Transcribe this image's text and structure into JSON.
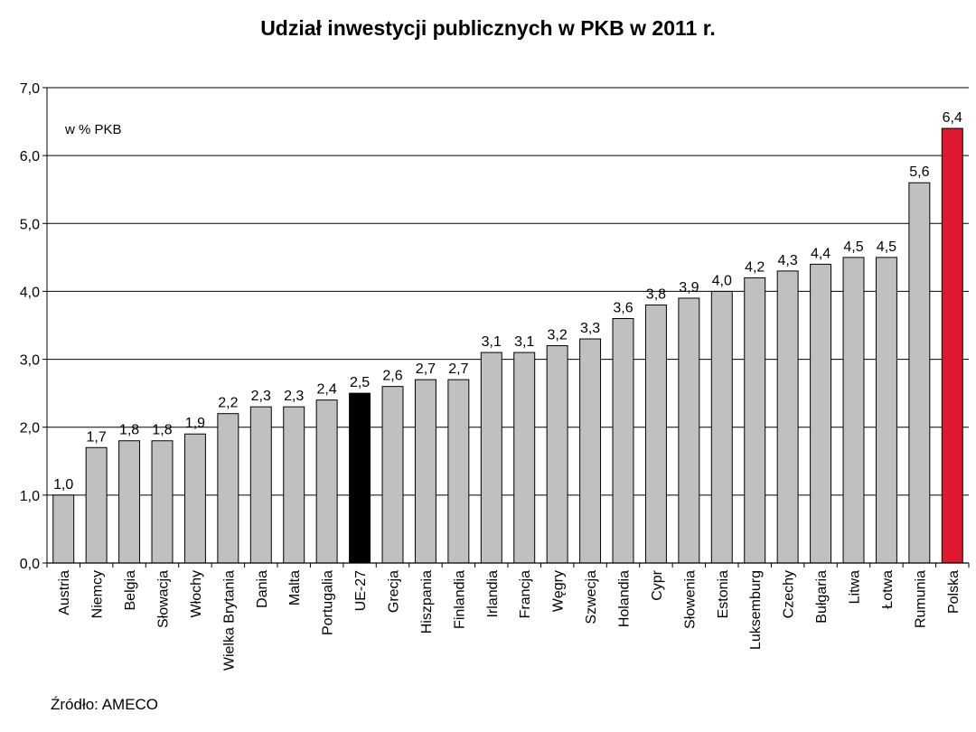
{
  "chart_data": {
    "type": "bar",
    "title": "Udział inwestycji publicznych w PKB w 2011 r.",
    "unit_label": "w % PKB",
    "source": "Źródło: AMECO",
    "ylim": [
      0,
      7
    ],
    "yticks": [
      "0,0",
      "1,0",
      "2,0",
      "3,0",
      "4,0",
      "5,0",
      "6,0",
      "7,0"
    ],
    "grid": true,
    "categories": [
      "Austria",
      "Niemcy",
      "Belgia",
      "Słowacja",
      "Włochy",
      "Wielka Brytania",
      "Dania",
      "Malta",
      "Portugalia",
      "UE-27",
      "Grecja",
      "Hiszpania",
      "Finlandia",
      "Irlandia",
      "Francja",
      "Węgry",
      "Szwecja",
      "Holandia",
      "Cypr",
      "Słowenia",
      "Estonia",
      "Luksemburg",
      "Czechy",
      "Bułgaria",
      "Litwa",
      "Łotwa",
      "Rumunia",
      "Polska"
    ],
    "values": [
      1.0,
      1.7,
      1.8,
      1.8,
      1.9,
      2.2,
      2.3,
      2.3,
      2.4,
      2.5,
      2.6,
      2.7,
      2.7,
      3.1,
      3.1,
      3.2,
      3.3,
      3.6,
      3.8,
      3.9,
      4.0,
      4.2,
      4.3,
      4.4,
      4.5,
      4.5,
      5.6,
      6.4
    ],
    "value_labels": [
      "1,0",
      "1,7",
      "1,8",
      "1,8",
      "1,9",
      "2,2",
      "2,3",
      "2,3",
      "2,4",
      "2,5",
      "2,6",
      "2,7",
      "2,7",
      "3,1",
      "3,1",
      "3,2",
      "3,3",
      "3,6",
      "3,8",
      "3,9",
      "4,0",
      "4,2",
      "4,3",
      "4,4",
      "4,5",
      "4,5",
      "5,6",
      "6,4"
    ],
    "colors": {
      "default": "#c0c0c0",
      "highlight_eu": "#000000",
      "highlight_pl": "#e0182f",
      "grid": "#000000"
    },
    "highlight": {
      "UE-27": "highlight_eu",
      "Polska": "highlight_pl"
    }
  }
}
